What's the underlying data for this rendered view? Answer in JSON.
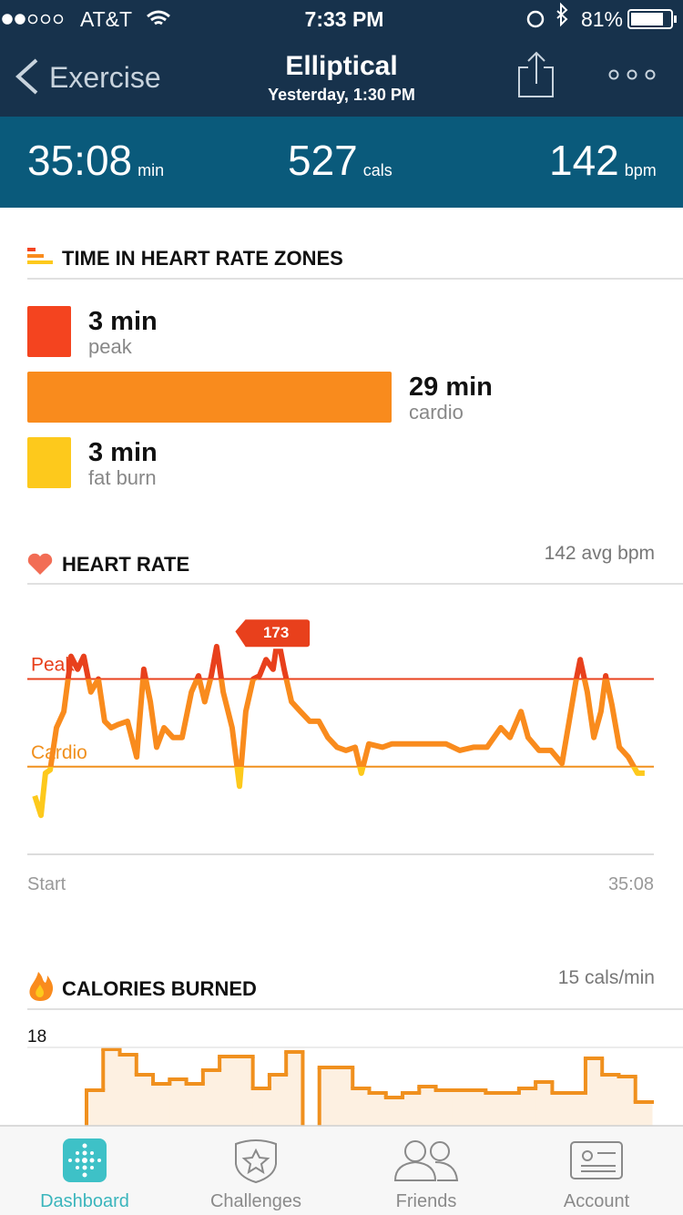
{
  "status": {
    "carrier": "AT&T",
    "time": "7:33 PM",
    "battery": "81%"
  },
  "header": {
    "back": "Exercise",
    "title": "Elliptical",
    "subtitle": "Yesterday, 1:30 PM"
  },
  "stats": [
    {
      "value": "35:08",
      "unit": "min"
    },
    {
      "value": "527",
      "unit": "cals"
    },
    {
      "value": "142",
      "unit": "bpm"
    }
  ],
  "zones": {
    "title": "TIME IN HEART RATE ZONES",
    "items": [
      {
        "minutes": {
          "value": 3,
          "label": "3 min"
        },
        "name": "peak",
        "color": "#f4441f"
      },
      {
        "minutes": {
          "value": 29,
          "label": "29 min"
        },
        "name": "cardio",
        "color": "#f98b1d"
      },
      {
        "minutes": {
          "value": 3,
          "label": "3 min"
        },
        "name": "fat burn",
        "color": "#fdc91c"
      }
    ]
  },
  "chart_data": [
    {
      "type": "line",
      "title": "HEART RATE",
      "subtitle": "142 avg bpm",
      "x": [
        25,
        46,
        61,
        77,
        98,
        123,
        147,
        169,
        190,
        214,
        239,
        260,
        282,
        306,
        337,
        368,
        392,
        414,
        435,
        460,
        490,
        521,
        552,
        576,
        597,
        619,
        637,
        659,
        689,
        714,
        735,
        760,
        781,
        803,
        827,
        843,
        864,
        889,
        919,
        950,
        981,
        1011,
        1042,
        1072,
        1103,
        1124,
        1149,
        1195,
        1226,
        1272,
        1317,
        1363,
        1409,
        1455,
        1501,
        1547,
        1593,
        1624,
        1661,
        1685,
        1722,
        1762,
        1799,
        1823,
        1845,
        1860,
        1884,
        1906,
        1930,
        1946,
        1967,
        1992,
        2022,
        2053,
        2077
      ],
      "values": [
        124,
        118,
        131,
        132,
        145,
        150,
        167,
        163,
        167,
        156,
        160,
        147,
        145,
        146,
        147,
        136,
        163,
        153,
        139,
        145,
        142,
        142,
        156,
        161,
        153,
        161,
        170,
        156,
        145,
        127,
        150,
        160,
        161,
        166,
        163,
        173,
        163,
        153,
        150,
        147,
        147,
        142,
        139,
        138,
        139,
        131,
        140,
        139,
        140,
        140,
        140,
        140,
        140,
        138,
        139,
        139,
        145,
        142,
        150,
        142,
        138,
        138,
        134,
        147,
        159,
        166,
        156,
        142,
        150,
        161,
        152,
        139,
        136,
        131,
        131
      ],
      "color": "#f98b1d",
      "xlim": [
        0,
        2108
      ],
      "xticks": [
        {
          "value": 0,
          "label": "Start"
        },
        {
          "value": 2108,
          "label": "35:08"
        }
      ],
      "ylim": [
        106,
        184
      ],
      "reference_lines": [
        {
          "label": "Peak",
          "value": 160,
          "color": "#e8401c"
        },
        {
          "label": "Cardio",
          "value": 133,
          "color": "#f0901e"
        }
      ],
      "annotation": {
        "x": 843,
        "value": 173
      }
    },
    {
      "type": "step",
      "title": "CALORIES BURNED",
      "subtitle": "15 cals/min",
      "values": [
        13.3,
        17.8,
        17.2,
        15,
        14,
        14.5,
        14,
        15.5,
        17,
        17,
        13.5,
        15,
        17.5,
        null,
        15.8,
        15.8,
        13.5,
        13,
        12.5,
        13,
        13.7,
        13.3,
        13.3,
        13.3,
        13,
        13,
        13.5,
        14.2,
        13,
        13,
        16.8,
        15,
        14.8,
        12
      ],
      "color": "#f0901e",
      "ylim": [
        0,
        18
      ],
      "yticks": [
        18
      ],
      "grid": true
    }
  ],
  "tabs": [
    "Dashboard",
    "Challenges",
    "Friends",
    "Account"
  ]
}
